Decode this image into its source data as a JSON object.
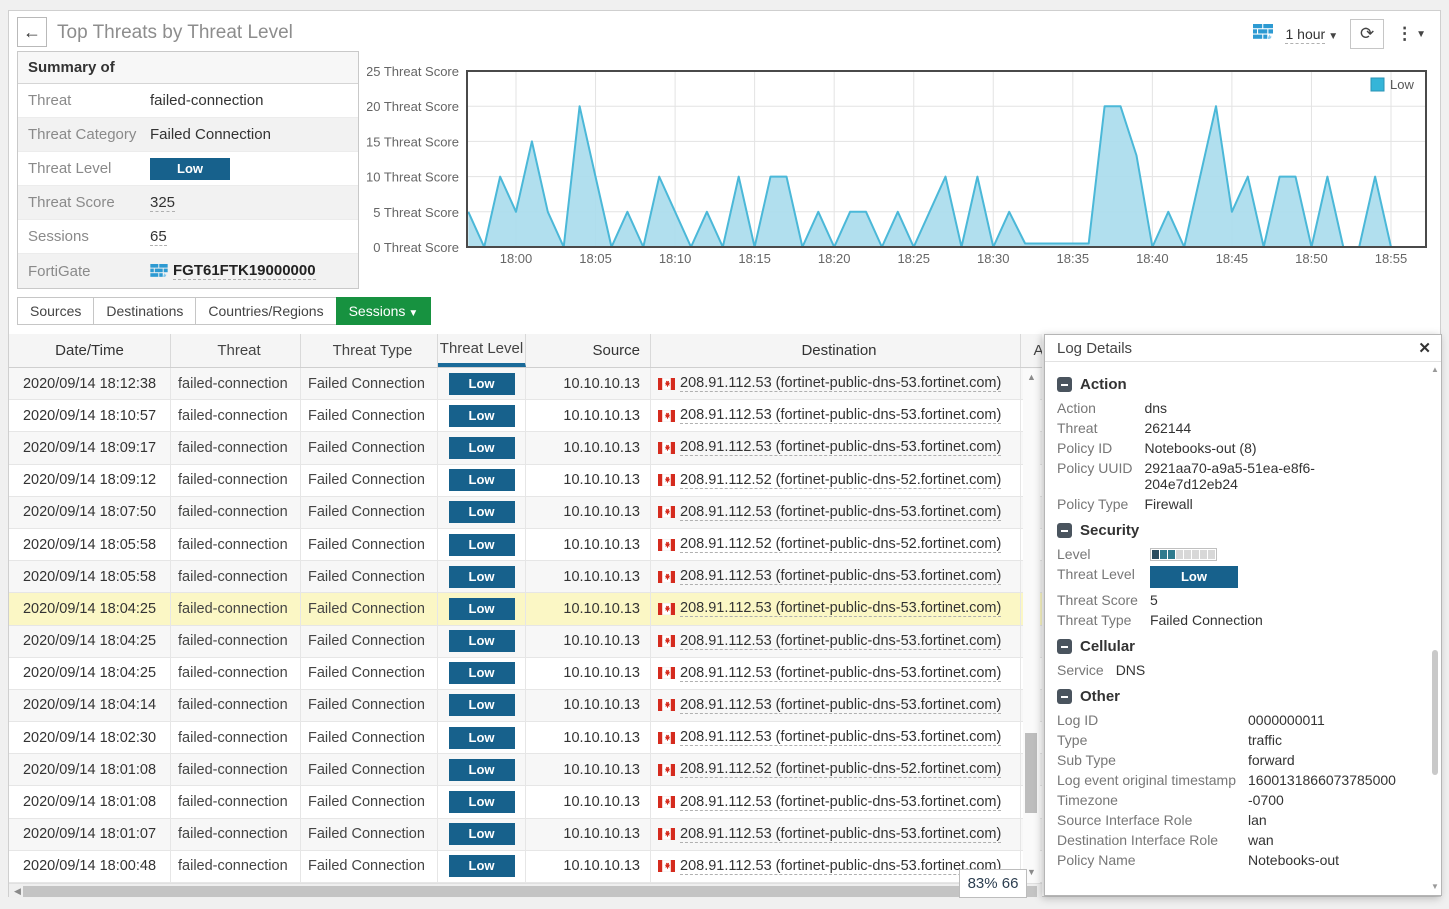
{
  "colors": {
    "badge_blue": "#17618c",
    "tab_green": "#179240",
    "row_selected": "#fbf7c5",
    "header_underline": "#1a6a99",
    "flag_red": "#d52b1e"
  },
  "header": {
    "back_icon": "←",
    "title": "Top Threats by Threat Level",
    "time_range": "1 hour",
    "refresh_icon": "⟳",
    "menu_icon": "⋮"
  },
  "summary": {
    "title": "Summary of",
    "rows": [
      {
        "label": "Threat",
        "value": "failed-connection"
      },
      {
        "label": "Threat Category",
        "value": "Failed Connection"
      },
      {
        "label": "Threat Level",
        "value": "Low"
      },
      {
        "label": "Threat Score",
        "value": "325"
      },
      {
        "label": "Sessions",
        "value": "65"
      },
      {
        "label": "FortiGate",
        "value": "FGT61FTK19000000"
      }
    ]
  },
  "chart_data": {
    "type": "area",
    "title": "",
    "ylabel_suffix": " Threat Score",
    "y_ticks": [
      0,
      5,
      10,
      15,
      20,
      25
    ],
    "ylim": [
      0,
      25
    ],
    "x_ticks": [
      "18:00",
      "18:05",
      "18:10",
      "18:15",
      "18:20",
      "18:25",
      "18:30",
      "18:35",
      "18:40",
      "18:45",
      "18:50",
      "18:55"
    ],
    "grid": true,
    "legend_position": "top-right",
    "line_color": "#4bb8d8",
    "fill_color": "#a9dcec",
    "legend_fill": "#35b5d8",
    "legend_stroke": "#2a93b5",
    "series": [
      {
        "name": "Low",
        "x": [
          "17:57",
          "17:58",
          "17:59",
          "18:00",
          "18:01",
          "18:02",
          "18:03",
          "18:04",
          "18:05",
          "18:06",
          "18:07",
          "18:08",
          "18:09",
          "18:10",
          "18:11",
          "18:12",
          "18:13",
          "18:14",
          "18:15",
          "18:16",
          "18:17",
          "18:18",
          "18:19",
          "18:20",
          "18:21",
          "18:22",
          "18:23",
          "18:24",
          "18:25",
          "18:26",
          "18:27",
          "18:28",
          "18:29",
          "18:30",
          "18:31",
          "18:32",
          "18:33",
          "18:34",
          "18:35",
          "18:36",
          "18:37",
          "18:38",
          "18:39",
          "18:40",
          "18:41",
          "18:42",
          "18:43",
          "18:44",
          "18:45",
          "18:46",
          "18:47",
          "18:48",
          "18:49",
          "18:50",
          "18:51",
          "18:52",
          "18:53",
          "18:54",
          "18:55"
        ],
        "values": [
          5,
          0,
          10,
          5,
          15,
          5,
          0,
          20,
          10,
          0,
          5,
          0,
          10,
          5,
          0,
          5,
          0,
          10,
          0,
          10,
          10,
          0,
          5,
          0,
          5,
          5,
          0,
          5,
          0,
          5,
          10,
          0,
          10,
          0,
          5,
          0.5,
          0.5,
          0.5,
          0.5,
          0.5,
          20,
          20,
          13,
          0,
          5,
          0,
          10,
          20,
          5,
          10,
          0,
          10,
          10,
          0,
          10,
          0,
          0,
          10,
          0
        ]
      }
    ]
  },
  "tabs": [
    {
      "label": "Sources",
      "active": false
    },
    {
      "label": "Destinations",
      "active": false
    },
    {
      "label": "Countries/Regions",
      "active": false
    },
    {
      "label": "Sessions",
      "active": true
    }
  ],
  "table": {
    "columns": [
      "Date/Time",
      "Threat",
      "Threat Type",
      "Threat Level",
      "Source",
      "Destination",
      "A"
    ],
    "sorted_column_index": 3,
    "selected_row_index": 7,
    "status_box": "83% 66",
    "rows": [
      {
        "datetime": "2020/09/14 18:12:38",
        "threat": "failed-connection",
        "threat_type": "Failed Connection",
        "threat_level": "Low",
        "source": "10.10.10.13",
        "destination": "208.91.112.53 (fortinet-public-dns-53.fortinet.com)"
      },
      {
        "datetime": "2020/09/14 18:10:57",
        "threat": "failed-connection",
        "threat_type": "Failed Connection",
        "threat_level": "Low",
        "source": "10.10.10.13",
        "destination": "208.91.112.53 (fortinet-public-dns-53.fortinet.com)"
      },
      {
        "datetime": "2020/09/14 18:09:17",
        "threat": "failed-connection",
        "threat_type": "Failed Connection",
        "threat_level": "Low",
        "source": "10.10.10.13",
        "destination": "208.91.112.53 (fortinet-public-dns-53.fortinet.com)"
      },
      {
        "datetime": "2020/09/14 18:09:12",
        "threat": "failed-connection",
        "threat_type": "Failed Connection",
        "threat_level": "Low",
        "source": "10.10.10.13",
        "destination": "208.91.112.52 (fortinet-public-dns-52.fortinet.com)"
      },
      {
        "datetime": "2020/09/14 18:07:50",
        "threat": "failed-connection",
        "threat_type": "Failed Connection",
        "threat_level": "Low",
        "source": "10.10.10.13",
        "destination": "208.91.112.53 (fortinet-public-dns-53.fortinet.com)"
      },
      {
        "datetime": "2020/09/14 18:05:58",
        "threat": "failed-connection",
        "threat_type": "Failed Connection",
        "threat_level": "Low",
        "source": "10.10.10.13",
        "destination": "208.91.112.52 (fortinet-public-dns-52.fortinet.com)"
      },
      {
        "datetime": "2020/09/14 18:05:58",
        "threat": "failed-connection",
        "threat_type": "Failed Connection",
        "threat_level": "Low",
        "source": "10.10.10.13",
        "destination": "208.91.112.53 (fortinet-public-dns-53.fortinet.com)"
      },
      {
        "datetime": "2020/09/14 18:04:25",
        "threat": "failed-connection",
        "threat_type": "Failed Connection",
        "threat_level": "Low",
        "source": "10.10.10.13",
        "destination": "208.91.112.53 (fortinet-public-dns-53.fortinet.com)"
      },
      {
        "datetime": "2020/09/14 18:04:25",
        "threat": "failed-connection",
        "threat_type": "Failed Connection",
        "threat_level": "Low",
        "source": "10.10.10.13",
        "destination": "208.91.112.53 (fortinet-public-dns-53.fortinet.com)"
      },
      {
        "datetime": "2020/09/14 18:04:25",
        "threat": "failed-connection",
        "threat_type": "Failed Connection",
        "threat_level": "Low",
        "source": "10.10.10.13",
        "destination": "208.91.112.53 (fortinet-public-dns-53.fortinet.com)"
      },
      {
        "datetime": "2020/09/14 18:04:14",
        "threat": "failed-connection",
        "threat_type": "Failed Connection",
        "threat_level": "Low",
        "source": "10.10.10.13",
        "destination": "208.91.112.53 (fortinet-public-dns-53.fortinet.com)"
      },
      {
        "datetime": "2020/09/14 18:02:30",
        "threat": "failed-connection",
        "threat_type": "Failed Connection",
        "threat_level": "Low",
        "source": "10.10.10.13",
        "destination": "208.91.112.53 (fortinet-public-dns-53.fortinet.com)"
      },
      {
        "datetime": "2020/09/14 18:01:08",
        "threat": "failed-connection",
        "threat_type": "Failed Connection",
        "threat_level": "Low",
        "source": "10.10.10.13",
        "destination": "208.91.112.52 (fortinet-public-dns-52.fortinet.com)"
      },
      {
        "datetime": "2020/09/14 18:01:08",
        "threat": "failed-connection",
        "threat_type": "Failed Connection",
        "threat_level": "Low",
        "source": "10.10.10.13",
        "destination": "208.91.112.53 (fortinet-public-dns-53.fortinet.com)"
      },
      {
        "datetime": "2020/09/14 18:01:07",
        "threat": "failed-connection",
        "threat_type": "Failed Connection",
        "threat_level": "Low",
        "source": "10.10.10.13",
        "destination": "208.91.112.53 (fortinet-public-dns-53.fortinet.com)"
      },
      {
        "datetime": "2020/09/14 18:00:48",
        "threat": "failed-connection",
        "threat_type": "Failed Connection",
        "threat_level": "Low",
        "source": "10.10.10.13",
        "destination": "208.91.112.53 (fortinet-public-dns-53.fortinet.com)"
      }
    ]
  },
  "log_details": {
    "title": "Log Details",
    "close_icon": "✕",
    "level_bar": {
      "segments": [
        "#2b4c5f",
        "#2f7b8e",
        "#2f7b8e",
        "#d8d8d8",
        "#d8d8d8",
        "#d8d8d8",
        "#d8d8d8",
        "#d8d8d8"
      ]
    },
    "sections": [
      {
        "title": "Action",
        "rows": [
          {
            "label": "Action",
            "value": "dns"
          },
          {
            "label": "Threat",
            "value": "262144"
          },
          {
            "label": "Policy ID",
            "value": "Notebooks-out (8)"
          },
          {
            "label": "Policy UUID",
            "value": "2921aa70-a9a5-51ea-e8f6-204e7d12eb24"
          },
          {
            "label": "Policy Type",
            "value": "Firewall"
          }
        ]
      },
      {
        "title": "Security",
        "rows": [
          {
            "label": "Level",
            "value": "",
            "type": "levelbar"
          },
          {
            "label": "Threat Level",
            "value": "Low",
            "type": "badge"
          },
          {
            "label": "Threat Score",
            "value": "5"
          },
          {
            "label": "Threat Type",
            "value": "Failed Connection"
          }
        ]
      },
      {
        "title": "Cellular",
        "rows": [
          {
            "label": "Service",
            "value": "DNS"
          }
        ]
      },
      {
        "title": "Other",
        "rows": [
          {
            "label": "Log ID",
            "value": "0000000011"
          },
          {
            "label": "Type",
            "value": "traffic"
          },
          {
            "label": "Sub Type",
            "value": "forward"
          },
          {
            "label": "Log event original timestamp",
            "value": "1600131866073785000"
          },
          {
            "label": "Timezone",
            "value": "-0700"
          },
          {
            "label": "Source Interface Role",
            "value": "lan"
          },
          {
            "label": "Destination Interface Role",
            "value": "wan"
          },
          {
            "label": "Policy Name",
            "value": "Notebooks-out"
          }
        ]
      }
    ]
  }
}
